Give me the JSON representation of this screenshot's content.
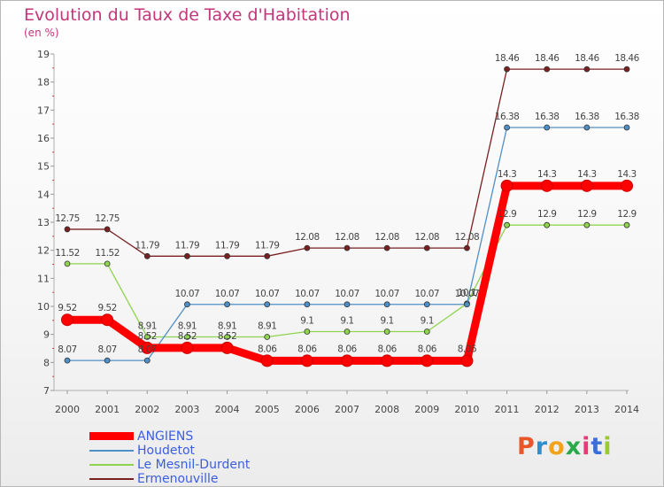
{
  "header": {
    "title": "Evolution du Taux de Taxe d'Habitation",
    "subtitle": "(en %)"
  },
  "chart_data": {
    "type": "line",
    "x": [
      "2000",
      "2001",
      "2002",
      "2003",
      "2004",
      "2005",
      "2006",
      "2007",
      "2008",
      "2009",
      "2010",
      "2011",
      "2012",
      "2013",
      "2014"
    ],
    "ylim": [
      7,
      19
    ],
    "yticks": [
      7,
      8,
      9,
      10,
      11,
      12,
      13,
      14,
      15,
      16,
      17,
      18,
      19
    ],
    "grid": false,
    "legend_position": "bottom-left",
    "series": [
      {
        "name": "ANGIENS",
        "color": "#ff0000",
        "values": [
          9.52,
          9.52,
          8.52,
          8.52,
          8.52,
          8.06,
          8.06,
          8.06,
          8.06,
          8.06,
          8.06,
          14.3,
          14.3,
          14.3,
          14.3
        ],
        "labels": [
          "9.52",
          "9.52",
          "8.52",
          "8.52",
          "8.52",
          "8.06",
          "8.06",
          "8.06",
          "8.06",
          "8.06",
          "8.06",
          "14.3",
          "14.3",
          "14.3",
          "14.3"
        ]
      },
      {
        "name": "Houdetot",
        "color": "#4f8fc7",
        "values": [
          8.07,
          8.07,
          8.07,
          10.07,
          10.07,
          10.07,
          10.07,
          10.07,
          10.07,
          10.07,
          10.07,
          16.38,
          16.38,
          16.38,
          16.38
        ],
        "labels": [
          "8.07",
          "8.07",
          "8.07",
          "10.07",
          "10.07",
          "10.07",
          "10.07",
          "10.07",
          "10.07",
          "10.07",
          "10.07",
          "16.38",
          "16.38",
          "16.38",
          "16.38"
        ]
      },
      {
        "name": "Le Mesnil-Durdent",
        "color": "#8fd34f",
        "values": [
          11.52,
          11.52,
          8.91,
          8.91,
          8.91,
          8.91,
          9.1,
          9.1,
          9.1,
          9.1,
          10.1,
          12.9,
          12.9,
          12.9,
          12.9
        ],
        "labels": [
          "11.52",
          "11.52",
          "8.91",
          "8.91",
          "8.91",
          "8.91",
          "9.1",
          "9.1",
          "9.1",
          "9.1",
          "10.1",
          "12.9",
          "12.9",
          "12.9",
          "12.9"
        ]
      },
      {
        "name": "Ermenouville",
        "color": "#7a2020",
        "values": [
          12.75,
          12.75,
          11.79,
          11.79,
          11.79,
          11.79,
          12.08,
          12.08,
          12.08,
          12.08,
          12.08,
          18.46,
          18.46,
          18.46,
          18.46
        ],
        "labels": [
          "12.75",
          "12.75",
          "11.79",
          "11.79",
          "11.79",
          "11.79",
          "12.08",
          "12.08",
          "12.08",
          "12.08",
          "12.08",
          "18.46",
          "18.46",
          "18.46",
          "18.46"
        ]
      }
    ]
  },
  "logo": {
    "text": "Proxiti",
    "colors": [
      "#e8562a",
      "#2e8fd0",
      "#f2a21b",
      "#2aa84a",
      "#e83a7a",
      "#3a6fd6",
      "#9acb2d"
    ]
  }
}
